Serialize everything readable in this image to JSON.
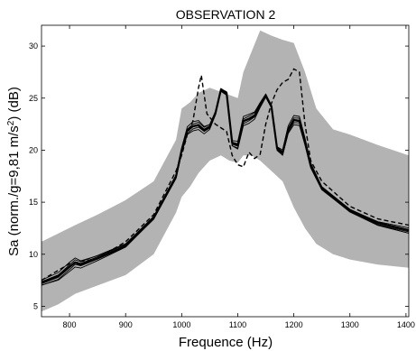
{
  "chart_data": {
    "type": "line",
    "title": "OBSERVATION 2",
    "xlabel": "Frequence (Hz)",
    "ylabel_parts": [
      "Sa (norm./g=9,81 m/s",
      "2",
      ") (dB)"
    ],
    "xlim": [
      750,
      1405
    ],
    "ylim": [
      4,
      32
    ],
    "xticks": [
      800,
      900,
      1000,
      1100,
      1200,
      1300,
      1400
    ],
    "yticks": [
      5,
      10,
      15,
      20,
      25,
      30
    ],
    "grid": false,
    "colors": {
      "band": "#b3b3b3",
      "simulated": "#000000",
      "observed": "#000000"
    },
    "series": [
      {
        "role": "envelope-band",
        "x": [
          750,
          780,
          810,
          850,
          900,
          950,
          990,
          1000,
          1015,
          1030,
          1050,
          1070,
          1085,
          1100,
          1110,
          1125,
          1140,
          1160,
          1180,
          1200,
          1220,
          1240,
          1270,
          1300,
          1350,
          1405
        ],
        "upper": [
          11.2,
          12.0,
          12.8,
          13.8,
          15.2,
          17.0,
          21.0,
          24.0,
          24.6,
          25.5,
          26.0,
          25.6,
          25.3,
          25.0,
          27.5,
          29.5,
          31.5,
          31.0,
          30.6,
          30.3,
          27.5,
          24.0,
          22.0,
          21.5,
          20.5,
          19.5
        ],
        "lower": [
          4.5,
          5.2,
          6.2,
          7.0,
          8.0,
          10.0,
          14.0,
          15.5,
          16.5,
          17.8,
          19.0,
          19.5,
          19.0,
          18.8,
          19.5,
          19.5,
          19.0,
          18.0,
          17.0,
          14.5,
          12.5,
          11.0,
          10.0,
          9.5,
          9.0,
          8.7
        ]
      },
      {
        "role": "simulated-mean",
        "x": [
          750,
          780,
          800,
          810,
          820,
          850,
          900,
          950,
          990,
          1000,
          1010,
          1020,
          1030,
          1040,
          1050,
          1060,
          1070,
          1080,
          1090,
          1100,
          1110,
          1120,
          1130,
          1140,
          1150,
          1160,
          1170,
          1180,
          1190,
          1200,
          1210,
          1220,
          1230,
          1250,
          1300,
          1350,
          1405
        ],
        "y": [
          7.3,
          7.9,
          8.8,
          9.2,
          9.0,
          9.6,
          10.8,
          13.5,
          17.5,
          20.0,
          21.9,
          22.3,
          22.4,
          21.9,
          22.2,
          23.5,
          25.8,
          25.5,
          20.7,
          20.5,
          22.8,
          23.0,
          23.3,
          24.3,
          25.2,
          24.2,
          20.2,
          19.8,
          22.0,
          22.9,
          22.8,
          20.8,
          18.5,
          16.3,
          14.2,
          13.0,
          12.3
        ]
      },
      {
        "role": "observed-dashed",
        "x": [
          750,
          800,
          850,
          900,
          950,
          990,
          1000,
          1010,
          1020,
          1030,
          1035,
          1045,
          1060,
          1080,
          1090,
          1100,
          1110,
          1120,
          1130,
          1140,
          1150,
          1160,
          1170,
          1180,
          1190,
          1200,
          1210,
          1220,
          1230,
          1250,
          1300,
          1350,
          1405
        ],
        "y": [
          7.5,
          9.1,
          9.6,
          11.2,
          13.8,
          18.0,
          19.5,
          21.5,
          22.8,
          26.0,
          27.2,
          23.5,
          22.5,
          21.8,
          19.5,
          18.6,
          18.4,
          19.8,
          19.2,
          19.6,
          22.5,
          24.5,
          25.8,
          26.5,
          26.8,
          27.8,
          27.5,
          22.5,
          19.0,
          17.0,
          14.6,
          13.4,
          12.8
        ]
      }
    ]
  }
}
